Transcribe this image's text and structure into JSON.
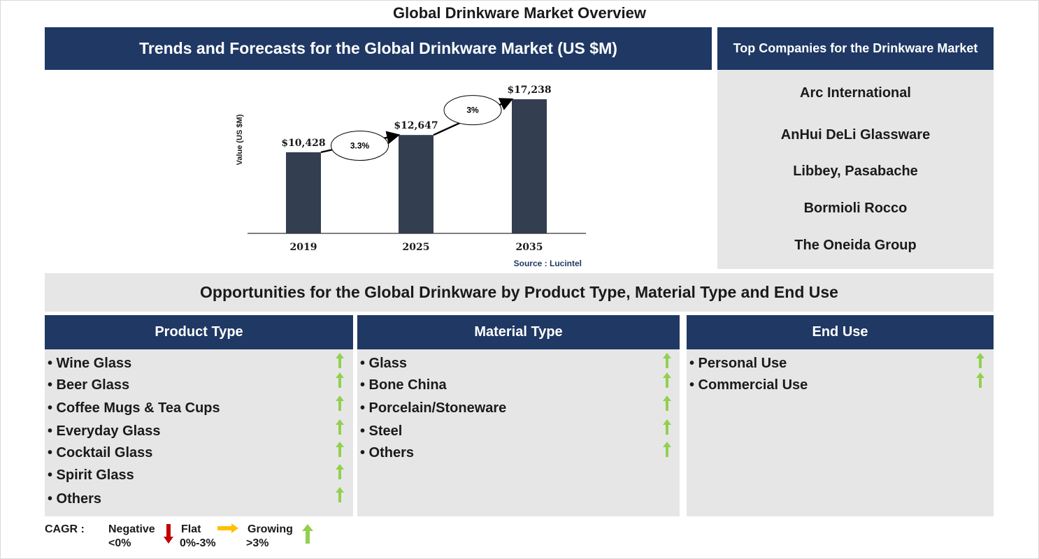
{
  "title": "Global Drinkware Market Overview",
  "chart_panel": {
    "header": "Trends and Forecasts for the Global Drinkware Market (US $M)"
  },
  "chart_data": {
    "type": "bar",
    "categories": [
      "2019",
      "2025",
      "2035"
    ],
    "values": [
      10428,
      12647,
      17238
    ],
    "value_labels": [
      "$10,428",
      "$12,647",
      "$17,238"
    ],
    "ylabel": "Value (US $M)",
    "ylim": [
      0,
      18500
    ],
    "bar_color": "#333f50",
    "cagr_annotations": [
      {
        "from": "2019",
        "to": "2025",
        "label": "3.3%"
      },
      {
        "from": "2025",
        "to": "2035",
        "label": "3%"
      }
    ],
    "source": "Source : Lucintel",
    "grid": false
  },
  "companies": {
    "header": "Top Companies for the Drinkware Market",
    "items": [
      "Arc International",
      "AnHui DeLi Glassware",
      "Libbey, Pasabache",
      "Bormioli Rocco",
      "The Oneida Group"
    ]
  },
  "opportunities": {
    "banner": "Opportunities for the Global Drinkware by Product Type, Material Type and End Use",
    "columns": [
      {
        "header": "Product Type",
        "items": [
          "• Wine Glass",
          "• Beer Glass",
          "• Coffee Mugs & Tea Cups",
          "• Everyday Glass",
          "• Cocktail Glass",
          "• Spirit Glass",
          "• Others"
        ]
      },
      {
        "header": "Material Type",
        "items": [
          "• Glass",
          "• Bone China",
          "• Porcelain/Stoneware",
          "• Steel",
          "• Others"
        ]
      },
      {
        "header": "End Use",
        "items": [
          "• Personal Use",
          "• Commercial Use"
        ]
      }
    ]
  },
  "legend": {
    "label": "CAGR :",
    "negative": {
      "name": "Negative",
      "range": "<0%",
      "color": "#c00000"
    },
    "flat": {
      "name": "Flat",
      "range": "0%-3%",
      "color": "#ffc000"
    },
    "growing": {
      "name": "Growing",
      "range": ">3%",
      "color": "#92d050"
    }
  }
}
